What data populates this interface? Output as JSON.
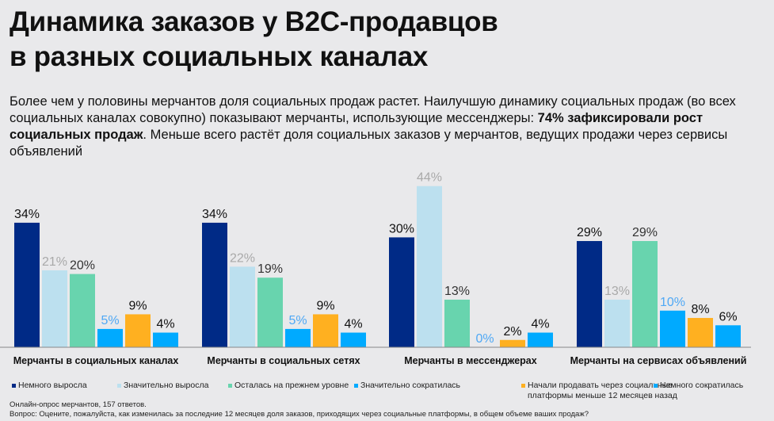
{
  "title": [
    "Динамика заказов у B2C-продавцов",
    "в разных социальных каналах"
  ],
  "lead": {
    "part1": "Более чем у половины мерчантов доля социальных продаж растет. Наилучшую динамику социальных продаж (во всех социальных каналах совокупно) показывают мерчанты, использующие мессенджеры: ",
    "bold": "74% зафиксировали рост социальных продаж",
    "part2": ". Меньше всего растёт доля социальных заказов у мерчантов, ведущих продажи через сервисы объявлений"
  },
  "chart_data": {
    "type": "bar",
    "categories": [
      "Мерчанты в социальных каналах",
      "Мерчанты в социальных сетях",
      "Мерчанты в мессенджерах",
      "Мерчанты на сервисах объявлений"
    ],
    "series": [
      {
        "name": "Немного выросла",
        "color": "#002a86",
        "label_color": "#111111",
        "values": [
          34,
          34,
          30,
          29
        ]
      },
      {
        "name": "Значительно выросла",
        "color": "#bce0ef",
        "label_color": "#a9a9a9",
        "values": [
          21,
          22,
          44,
          13
        ]
      },
      {
        "name": "Осталась на прежнем уровне",
        "color": "#68d4ae",
        "label_color": "#333333",
        "values": [
          20,
          19,
          13,
          29
        ]
      },
      {
        "name": "Значительно сократилась",
        "color": "#00aaff",
        "label_color": "#4fa8f5",
        "values": [
          5,
          5,
          0,
          10
        ]
      },
      {
        "name": "Начали продавать через социальные платформы меньше 12 месяцев назад",
        "color": "#ffb020",
        "label_color": "#111111",
        "values": [
          9,
          9,
          2,
          8
        ]
      },
      {
        "name": "Немного сократилась",
        "color": "#00aaff",
        "label_color": "#111111",
        "values": [
          4,
          4,
          4,
          6
        ]
      }
    ],
    "unit": "%",
    "ylim": [
      0,
      50
    ],
    "legend_position": "bottom",
    "grid": false
  },
  "legend_labels": [
    "Немного выросла",
    "Значительно выросла",
    "Осталась на прежнем уровне",
    "Значительно сократилась",
    "Начали продавать через социальные\nплатформы меньше 12 месяцев назад",
    "Немного сократилась"
  ],
  "notes": [
    "Онлайн-опрос мерчантов, 157 ответов.",
    "Вопрос: Оцените, пожалуйста, как изменилась за последние 12 месяцев доля заказов, приходящих через социальные платформы, в общем объеме ваших продаж?"
  ]
}
